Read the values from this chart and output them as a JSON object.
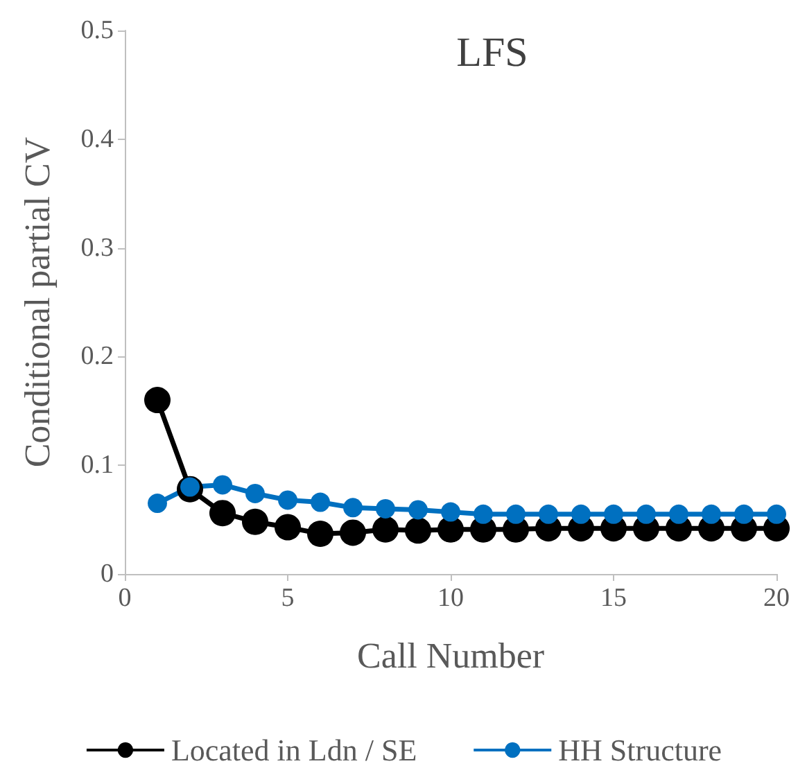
{
  "chart_data": {
    "type": "line",
    "title": "LFS",
    "xlabel": "Call Number",
    "ylabel": "Conditional partial CV",
    "x": [
      1,
      2,
      3,
      4,
      5,
      6,
      7,
      8,
      9,
      10,
      11,
      12,
      13,
      14,
      15,
      16,
      17,
      18,
      19,
      20
    ],
    "series": [
      {
        "name": "Located in Ldn / SE",
        "color": "#000000",
        "values": [
          0.16,
          0.078,
          0.056,
          0.048,
          0.043,
          0.037,
          0.038,
          0.041,
          0.04,
          0.041,
          0.041,
          0.041,
          0.042,
          0.042,
          0.042,
          0.042,
          0.042,
          0.042,
          0.042,
          0.042
        ]
      },
      {
        "name": "HH Structure",
        "color": "#0070c0",
        "values": [
          0.065,
          0.08,
          0.082,
          0.074,
          0.068,
          0.066,
          0.061,
          0.06,
          0.059,
          0.057,
          0.055,
          0.055,
          0.055,
          0.055,
          0.055,
          0.055,
          0.055,
          0.055,
          0.055,
          0.055
        ]
      }
    ],
    "xlim": [
      0,
      20
    ],
    "xticks": [
      0,
      5,
      10,
      15,
      20
    ],
    "ylim": [
      0,
      0.5
    ],
    "yticks": [
      0,
      0.1,
      0.2,
      0.3,
      0.4,
      0.5
    ],
    "grid": false,
    "legend": "bottom",
    "marker": "circle",
    "line_style": "solid"
  }
}
